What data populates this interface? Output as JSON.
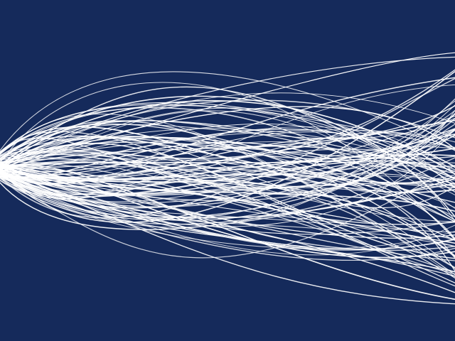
{
  "scene": {
    "background_color": "#152a5b",
    "stroke_color": "#ffffff",
    "description_kind": "generative-curves",
    "curve_count": 120,
    "seed": 7
  }
}
